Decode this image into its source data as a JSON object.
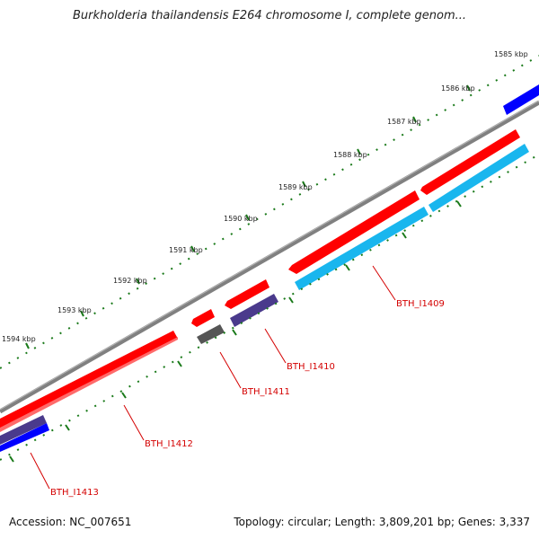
{
  "title": "Burkholderia thailandensis E264 chromosome I, complete genom...",
  "footer": {
    "accession": "Accession: NC_007651",
    "summary": "Topology: circular; Length: 3,809,201 bp; Genes: 3,337"
  },
  "ticks": {
    "labels": [
      "1585 kbp",
      "1586 kbp",
      "1587 kbp",
      "1588 kbp",
      "1589 kbp",
      "1590 kbp",
      "1591 kbp",
      "1592 kbp",
      "1593 kbp",
      "1594 kbp"
    ]
  },
  "genes": [
    {
      "label": "BTH_I1409"
    },
    {
      "label": "BTH_I1410"
    },
    {
      "label": "BTH_I1411"
    },
    {
      "label": "BTH_I1412"
    },
    {
      "label": "BTH_I1413"
    }
  ],
  "colors": {
    "backbone": "#7f7f7f",
    "cds_red": "#ff0000",
    "cds_cyan": "#19b6ee",
    "cds_purple": "#4a3a8c",
    "cds_blue": "#0000ff",
    "cds_gray": "#555555",
    "tick_green": "#1a7a1a",
    "label_red": "#d40000"
  }
}
